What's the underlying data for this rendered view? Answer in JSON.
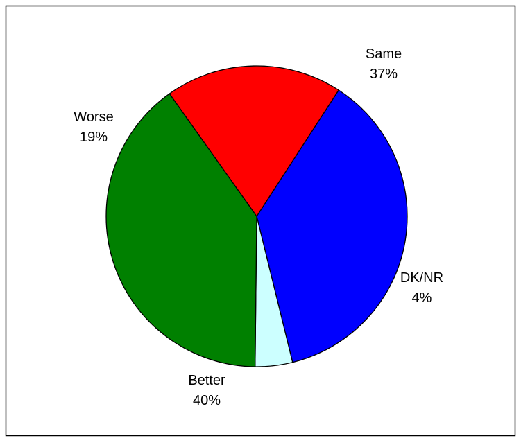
{
  "chart_data": {
    "type": "pie",
    "title": "",
    "slices": [
      {
        "label": "Same",
        "value": 37,
        "display": "37%",
        "color": "#0000FF"
      },
      {
        "label": "DK/NR",
        "value": 4,
        "display": "4%",
        "color": "#CCFFFF"
      },
      {
        "label": "Better",
        "value": 40,
        "display": "40%",
        "color": "#008000"
      },
      {
        "label": "Worse",
        "value": 19,
        "display": "19%",
        "color": "#FF0000"
      }
    ],
    "legend": "none",
    "labels_position": "outside"
  }
}
